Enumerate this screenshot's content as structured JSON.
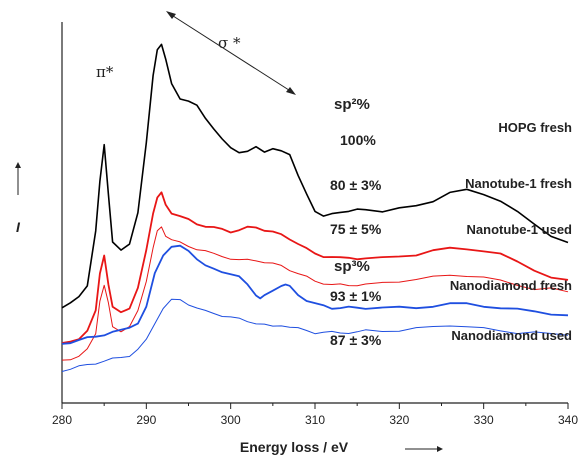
{
  "chart_data": {
    "type": "line",
    "xlabel": "Energy loss / eV",
    "ylabel": "I",
    "xlim": [
      280,
      340
    ],
    "xticks": [
      "280",
      "290",
      "300",
      "310",
      "320",
      "330",
      "340"
    ],
    "grid": false,
    "annotations": {
      "pi_star": "π*",
      "sigma_star": "σ *",
      "sp2_header": "sp²%",
      "sp3_header": "sp³%"
    },
    "series": [
      {
        "name": "HOPG fresh",
        "percent": "100%",
        "color": "#000000",
        "x": [
          280,
          281,
          282,
          283,
          284,
          284.5,
          285,
          285.5,
          286,
          287,
          288,
          289,
          290,
          290.8,
          291.3,
          291.8,
          292.3,
          293,
          294,
          295,
          296,
          297,
          298,
          299,
          300,
          301,
          302,
          303,
          304,
          305,
          306,
          307,
          308,
          309,
          310,
          311,
          312,
          313,
          314,
          315,
          316,
          318,
          320,
          322,
          324,
          326,
          328,
          330,
          332,
          334,
          336,
          338,
          340
        ],
        "y": [
          0.25,
          0.26,
          0.28,
          0.31,
          0.45,
          0.58,
          0.68,
          0.55,
          0.42,
          0.4,
          0.42,
          0.5,
          0.68,
          0.86,
          0.93,
          0.94,
          0.9,
          0.84,
          0.8,
          0.79,
          0.78,
          0.75,
          0.72,
          0.69,
          0.67,
          0.66,
          0.66,
          0.67,
          0.66,
          0.67,
          0.66,
          0.65,
          0.6,
          0.55,
          0.5,
          0.49,
          0.5,
          0.5,
          0.5,
          0.51,
          0.51,
          0.5,
          0.51,
          0.52,
          0.53,
          0.55,
          0.56,
          0.55,
          0.53,
          0.5,
          0.47,
          0.44,
          0.42
        ]
      },
      {
        "name": "Nanotube-1 fresh",
        "percent": "80 ± 3%",
        "color": "#e81616",
        "x": [
          280,
          281,
          282,
          283,
          284,
          284.5,
          285,
          285.5,
          286,
          287,
          288,
          289,
          290,
          290.8,
          291.3,
          291.8,
          292.3,
          293,
          294,
          295,
          296,
          297,
          298,
          299,
          300,
          301,
          302,
          303,
          304,
          305,
          306,
          307,
          308,
          309,
          310,
          311,
          312,
          313,
          314,
          315,
          316,
          318,
          320,
          322,
          324,
          326,
          328,
          330,
          332,
          334,
          336,
          338,
          340
        ],
        "y": [
          0.155,
          0.16,
          0.17,
          0.19,
          0.24,
          0.34,
          0.39,
          0.31,
          0.25,
          0.24,
          0.25,
          0.3,
          0.4,
          0.5,
          0.54,
          0.55,
          0.52,
          0.5,
          0.49,
          0.48,
          0.47,
          0.465,
          0.46,
          0.455,
          0.45,
          0.455,
          0.46,
          0.46,
          0.455,
          0.45,
          0.44,
          0.43,
          0.42,
          0.405,
          0.39,
          0.385,
          0.385,
          0.38,
          0.38,
          0.38,
          0.38,
          0.38,
          0.385,
          0.39,
          0.4,
          0.405,
          0.405,
          0.4,
          0.39,
          0.37,
          0.35,
          0.33,
          0.32
        ]
      },
      {
        "name": "Nanotube-1 used",
        "percent": "75 ± 5%",
        "color": "#e81616",
        "x": [
          280,
          281,
          282,
          283,
          284,
          284.5,
          285,
          285.5,
          286,
          287,
          288,
          289,
          290,
          290.8,
          291.3,
          291.8,
          292.3,
          293,
          294,
          295,
          296,
          297,
          298,
          299,
          300,
          301,
          302,
          303,
          304,
          305,
          306,
          307,
          308,
          309,
          310,
          311,
          312,
          313,
          314,
          315,
          316,
          318,
          320,
          322,
          324,
          326,
          328,
          330,
          332,
          334,
          336,
          338,
          340
        ],
        "y": [
          0.11,
          0.115,
          0.125,
          0.14,
          0.18,
          0.27,
          0.31,
          0.26,
          0.2,
          0.19,
          0.2,
          0.24,
          0.32,
          0.41,
          0.45,
          0.46,
          0.44,
          0.43,
          0.42,
          0.41,
          0.405,
          0.4,
          0.39,
          0.385,
          0.38,
          0.375,
          0.375,
          0.375,
          0.37,
          0.365,
          0.36,
          0.35,
          0.34,
          0.33,
          0.32,
          0.315,
          0.31,
          0.31,
          0.31,
          0.31,
          0.31,
          0.315,
          0.32,
          0.325,
          0.33,
          0.335,
          0.335,
          0.33,
          0.32,
          0.31,
          0.3,
          0.3,
          0.29
        ]
      },
      {
        "name": "Nanodiamond fresh",
        "percent": "93 ± 1%",
        "color": "#1f4fe0",
        "x": [
          280,
          281,
          282,
          283,
          284,
          285,
          286,
          287,
          288,
          289,
          290,
          291,
          292,
          293,
          294,
          295,
          296,
          297,
          298,
          299,
          300,
          301,
          302,
          303,
          303.5,
          304,
          305,
          306,
          306.5,
          307,
          308,
          309,
          310,
          311,
          312,
          313,
          314,
          315,
          316,
          318,
          320,
          322,
          324,
          326,
          328,
          330,
          332,
          334,
          336,
          338,
          340
        ],
        "y": [
          0.155,
          0.16,
          0.165,
          0.17,
          0.175,
          0.18,
          0.185,
          0.19,
          0.2,
          0.21,
          0.25,
          0.34,
          0.39,
          0.41,
          0.41,
          0.4,
          0.38,
          0.36,
          0.35,
          0.345,
          0.34,
          0.33,
          0.31,
          0.285,
          0.275,
          0.28,
          0.295,
          0.31,
          0.31,
          0.305,
          0.285,
          0.27,
          0.26,
          0.255,
          0.25,
          0.25,
          0.25,
          0.25,
          0.25,
          0.25,
          0.25,
          0.25,
          0.255,
          0.26,
          0.26,
          0.255,
          0.25,
          0.245,
          0.24,
          0.235,
          0.23
        ]
      },
      {
        "name": "Nanodiamond used",
        "percent": "87 ± 3%",
        "color": "#1f4fe0",
        "x": [
          280,
          281,
          282,
          283,
          284,
          285,
          286,
          287,
          288,
          289,
          290,
          291,
          292,
          293,
          294,
          295,
          296,
          297,
          298,
          299,
          300,
          301,
          302,
          303,
          304,
          305,
          306,
          307,
          308,
          309,
          310,
          311,
          312,
          313,
          314,
          315,
          316,
          318,
          320,
          322,
          324,
          326,
          328,
          330,
          332,
          334,
          336,
          338,
          340
        ],
        "y": [
          0.085,
          0.09,
          0.095,
          0.1,
          0.105,
          0.11,
          0.115,
          0.12,
          0.125,
          0.14,
          0.165,
          0.21,
          0.25,
          0.27,
          0.27,
          0.26,
          0.25,
          0.24,
          0.235,
          0.23,
          0.225,
          0.22,
          0.215,
          0.21,
          0.205,
          0.2,
          0.205,
          0.2,
          0.195,
          0.19,
          0.185,
          0.185,
          0.185,
          0.185,
          0.185,
          0.185,
          0.19,
          0.19,
          0.19,
          0.195,
          0.2,
          0.205,
          0.2,
          0.195,
          0.19,
          0.185,
          0.185,
          0.18,
          0.18
        ]
      }
    ]
  }
}
